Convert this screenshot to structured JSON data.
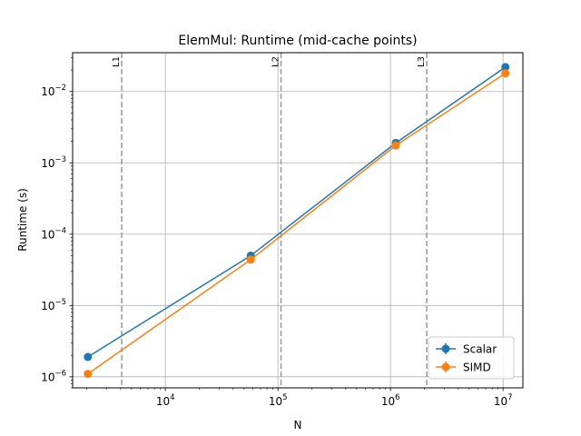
{
  "chart_data": {
    "type": "line",
    "title": "ElemMul: Runtime (mid-cache points)",
    "xlabel": "N",
    "ylabel": "Runtime (s)",
    "x_scale": "log",
    "y_scale": "log",
    "xlim": [
      1500,
      15000000
    ],
    "ylim": [
      7e-07,
      0.035
    ],
    "grid": true,
    "legend_position": "lower right",
    "x_ticks": [
      {
        "value": 10000,
        "base": "10",
        "exp": "4"
      },
      {
        "value": 100000,
        "base": "10",
        "exp": "5"
      },
      {
        "value": 1000000,
        "base": "10",
        "exp": "6"
      },
      {
        "value": 10000000,
        "base": "10",
        "exp": "7"
      }
    ],
    "y_ticks": [
      {
        "value": 1e-06,
        "base": "10",
        "exp": "−6"
      },
      {
        "value": 1e-05,
        "base": "10",
        "exp": "−5"
      },
      {
        "value": 0.0001,
        "base": "10",
        "exp": "−4"
      },
      {
        "value": 0.001,
        "base": "10",
        "exp": "−3"
      },
      {
        "value": 0.01,
        "base": "10",
        "exp": "−2"
      }
    ],
    "series": [
      {
        "name": "Scalar",
        "color": "#1f77b4",
        "x": [
          2048,
          57344,
          1114112,
          10485760
        ],
        "y": [
          1.9e-06,
          5e-05,
          0.0019,
          0.022
        ]
      },
      {
        "name": "SIMD",
        "color": "#ff7f0e",
        "x": [
          2048,
          57344,
          1114112,
          10485760
        ],
        "y": [
          1.1e-06,
          4.4e-05,
          0.00175,
          0.018
        ]
      }
    ],
    "reference_lines": [
      {
        "label": "L1",
        "x": 4096,
        "color": "#999999"
      },
      {
        "label": "L2",
        "x": 106496,
        "color": "#999999"
      },
      {
        "label": "L3",
        "x": 2097152,
        "color": "#999999"
      }
    ]
  }
}
